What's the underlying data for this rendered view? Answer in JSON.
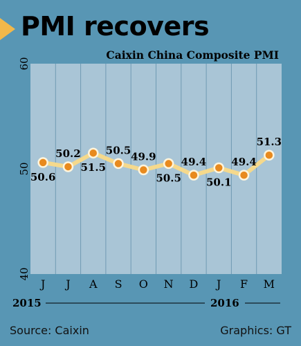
{
  "header": {
    "title": "PMI recovers",
    "subtitle": "Caixin China Composite PMI"
  },
  "footer": {
    "source": "Source: Caixin",
    "credit": "Graphics: GT"
  },
  "colors": {
    "background": "#5896b4",
    "plot": "#a9c5d6",
    "line": "#f5d98c",
    "marker": "#e88a1e",
    "arrow": "#f2b84a"
  },
  "chart_data": {
    "type": "line",
    "title": "Caixin China Composite PMI",
    "categories": [
      "J",
      "J",
      "A",
      "S",
      "O",
      "N",
      "D",
      "J",
      "F",
      "M"
    ],
    "year_labels": [
      "2015",
      "2016"
    ],
    "series": [
      {
        "values": [
          50.6,
          50.2,
          51.5,
          50.5,
          49.9,
          50.5,
          49.4,
          50.1,
          49.4,
          51.3
        ]
      }
    ],
    "value_labels": [
      "50.6",
      "50.2",
      "51.5",
      "50.5",
      "49.9",
      "50.5",
      "49.4",
      "50.1",
      "49.4",
      "51.3"
    ],
    "yticks": [
      "40",
      "50",
      "60"
    ],
    "ylim": [
      40,
      60
    ],
    "grid": "vertical",
    "xlabel": "",
    "ylabel": ""
  }
}
